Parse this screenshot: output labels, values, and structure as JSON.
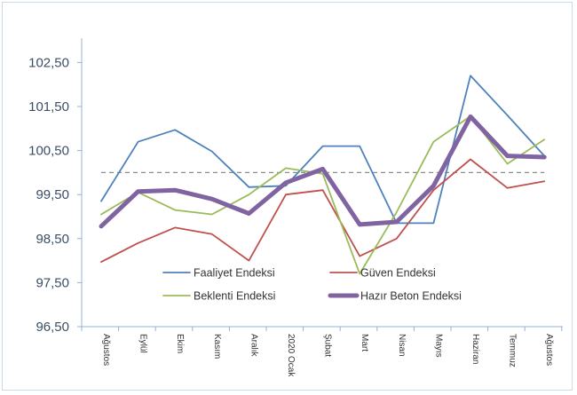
{
  "chart_data": {
    "type": "line",
    "categories": [
      "Ağustos",
      "Eylül",
      "Ekim",
      "Kasım",
      "Aralık",
      "2020 Ocak",
      "Şubat",
      "Mart",
      "Nisan",
      "Mayıs",
      "Haziran",
      "Temmuz",
      "Ağustos"
    ],
    "ylim": [
      96.5,
      103.0
    ],
    "yticks": [
      96.5,
      97.5,
      98.5,
      99.5,
      100.5,
      101.5,
      102.5
    ],
    "ytick_labels": [
      "96,50",
      "97,50",
      "98,50",
      "99,50",
      "100,50",
      "101,50",
      "102,50"
    ],
    "reference_line": 100.0,
    "grid": false,
    "legend_position": "bottom-inside",
    "series": [
      {
        "name": "Faaliyet Endeksi",
        "color": "#4f81bd",
        "width": 1.8,
        "values": [
          99.35,
          100.7,
          100.97,
          100.48,
          99.67,
          99.7,
          100.6,
          100.6,
          98.85,
          98.85,
          102.2,
          101.3,
          100.38
        ]
      },
      {
        "name": "Güven Endeksi",
        "color": "#c0504d",
        "width": 1.8,
        "values": [
          97.97,
          98.4,
          98.75,
          98.6,
          98.0,
          99.5,
          99.6,
          98.1,
          98.5,
          99.6,
          100.3,
          99.65,
          99.8
        ]
      },
      {
        "name": "Beklenti Endeksi",
        "color": "#9bbb59",
        "width": 1.8,
        "values": [
          99.05,
          99.55,
          99.15,
          99.05,
          99.5,
          100.1,
          99.97,
          97.7,
          99.1,
          100.7,
          101.28,
          100.2,
          100.75
        ]
      },
      {
        "name": "Hazır Beton Endeksi",
        "color": "#8064a2",
        "width": 5,
        "values": [
          98.78,
          99.57,
          99.6,
          99.4,
          99.07,
          99.77,
          100.08,
          98.82,
          98.88,
          99.7,
          101.27,
          100.38,
          100.35
        ]
      }
    ]
  }
}
